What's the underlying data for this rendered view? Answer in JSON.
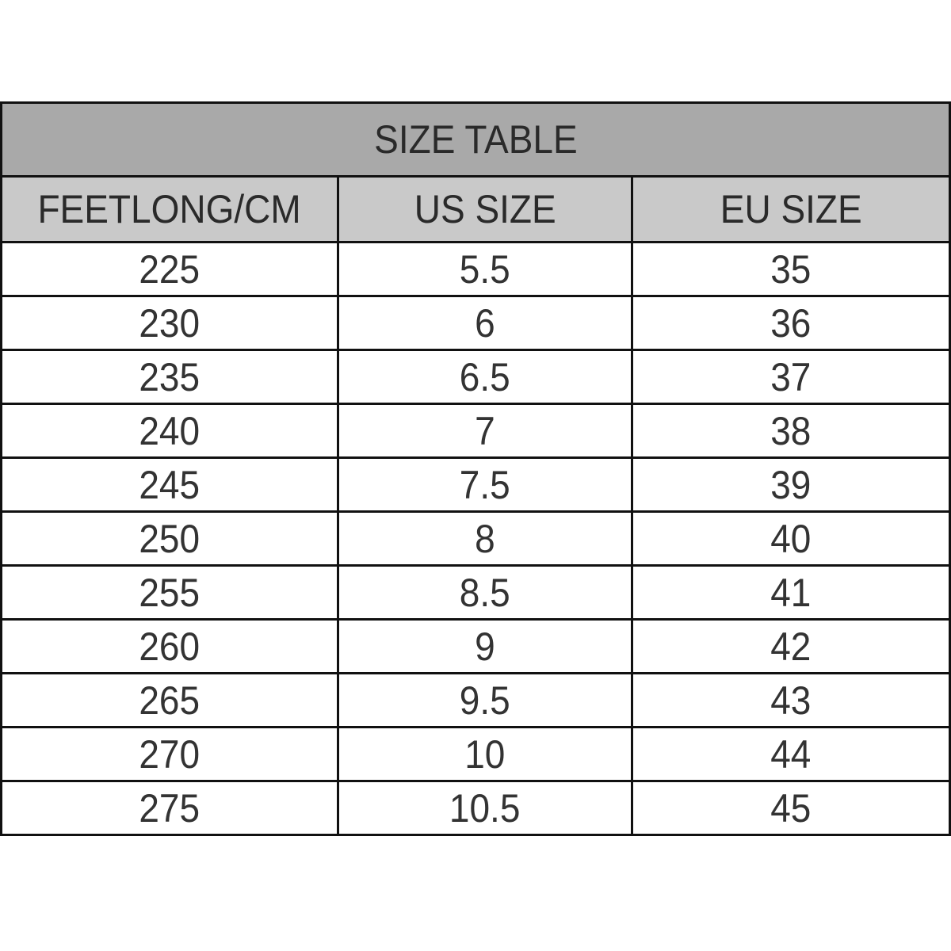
{
  "title": "SIZE TABLE",
  "columns": [
    "FEETLONG/CM",
    "US SIZE",
    "EU SIZE"
  ],
  "rows": [
    [
      "225",
      "5.5",
      "35"
    ],
    [
      "230",
      "6",
      "36"
    ],
    [
      "235",
      "6.5",
      "37"
    ],
    [
      "240",
      "7",
      "38"
    ],
    [
      "245",
      "7.5",
      "39"
    ],
    [
      "250",
      "8",
      "40"
    ],
    [
      "255",
      "8.5",
      "41"
    ],
    [
      "260",
      "9",
      "42"
    ],
    [
      "265",
      "9.5",
      "43"
    ],
    [
      "270",
      "10",
      "44"
    ],
    [
      "275",
      "10.5",
      "45"
    ]
  ],
  "colors": {
    "title_bg": "#a9a9a9",
    "header_bg": "#c9c9c9",
    "border": "#111111"
  }
}
